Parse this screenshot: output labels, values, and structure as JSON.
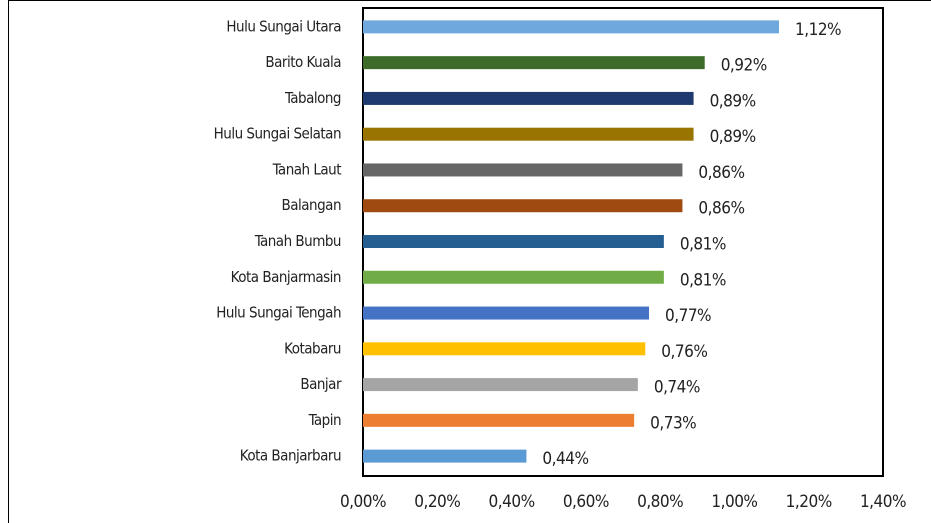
{
  "chart_data": {
    "type": "barh",
    "categories": [
      "Hulu Sungai Utara",
      "Barito Kuala",
      "Tabalong",
      "Hulu Sungai Selatan",
      "Tanah Laut",
      "Balangan",
      "Tanah Bumbu",
      "Kota Banjarmasin",
      "Hulu Sungai Tengah",
      "Kotabaru",
      "Banjar",
      "Tapin",
      "Kota Banjarbaru"
    ],
    "values": [
      1.12,
      0.92,
      0.89,
      0.89,
      0.86,
      0.86,
      0.81,
      0.81,
      0.77,
      0.76,
      0.74,
      0.73,
      0.44
    ],
    "value_labels": [
      "1,12%",
      "0,92%",
      "0,89%",
      "0,89%",
      "0,86%",
      "0,86%",
      "0,81%",
      "0,81%",
      "0,77%",
      "0,76%",
      "0,74%",
      "0,73%",
      "0,44%"
    ],
    "colors": [
      "#6fa8dc",
      "#3d6b2a",
      "#1f3a6e",
      "#9a7400",
      "#666666",
      "#9e4a10",
      "#255e91",
      "#70ad47",
      "#4472c4",
      "#ffc000",
      "#a5a5a5",
      "#ed7d31",
      "#5b9bd5"
    ],
    "xlim": [
      0,
      1.4
    ],
    "xticks": [
      {
        "value": 0,
        "label": "0,00%"
      },
      {
        "value": 0.2,
        "label": "0,20%"
      },
      {
        "value": 0.4,
        "label": "0,40%"
      },
      {
        "value": 0.6,
        "label": "0,60%"
      },
      {
        "value": 0.8,
        "label": "0,80%"
      },
      {
        "value": 1.0,
        "label": "1,00%"
      },
      {
        "value": 1.2,
        "label": "1,20%"
      },
      {
        "value": 1.4,
        "label": "1,40%"
      }
    ]
  }
}
